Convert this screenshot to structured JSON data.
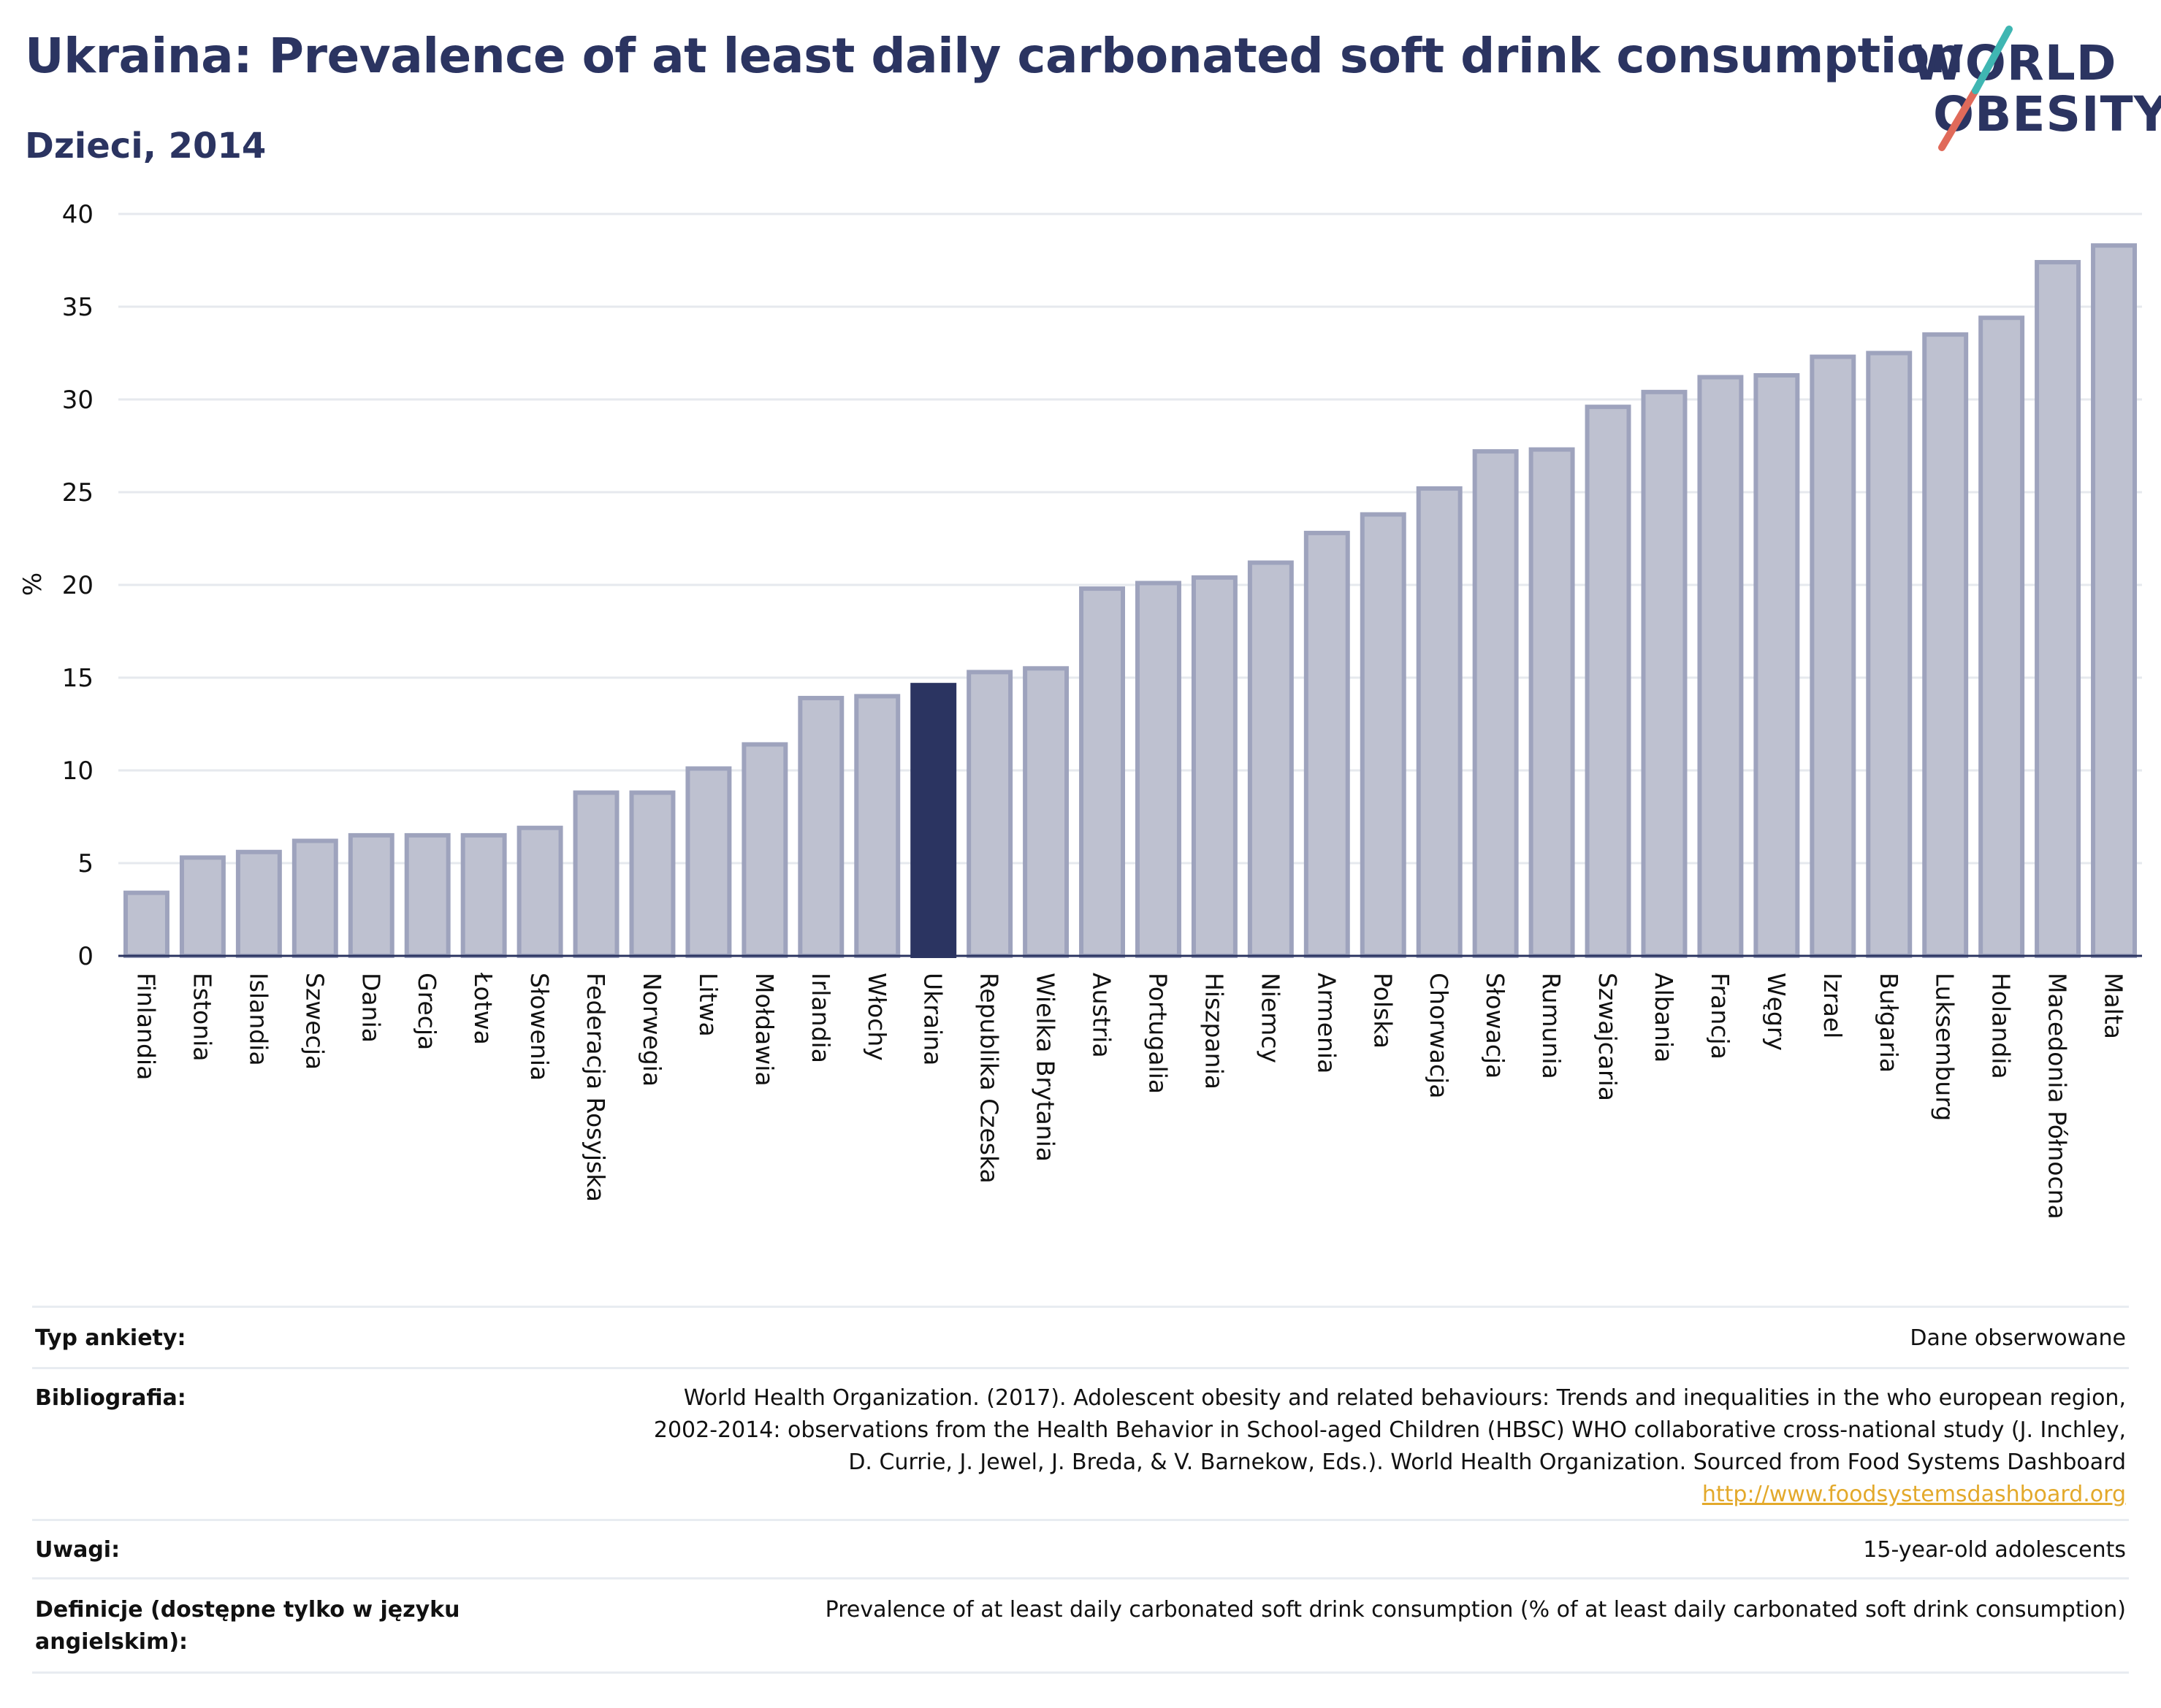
{
  "header": {
    "title": "Ukraina: Prevalence of at least daily carbonated soft drink consumption",
    "subtitle": "Dzieci, 2014"
  },
  "logo": {
    "line1": "WORLD",
    "line2": "OBESITY"
  },
  "colors": {
    "bar": "#bec1d0",
    "bar_border": "#9ea3bd",
    "highlight": "#2b3461",
    "grid": "#e6e9ee",
    "text": "#2b3461"
  },
  "chart_data": {
    "type": "bar",
    "title": "Ukraina: Prevalence of at least daily carbonated soft drink consumption",
    "subtitle": "Dzieci, 2014",
    "xlabel": "",
    "ylabel": "%",
    "ylim": [
      0,
      40
    ],
    "yticks": [
      0,
      5,
      10,
      15,
      20,
      25,
      30,
      35,
      40
    ],
    "grid": true,
    "highlight": "Ukraina",
    "categories": [
      "Finlandia",
      "Estonia",
      "Islandia",
      "Szwecja",
      "Dania",
      "Grecja",
      "Łotwa",
      "Słowenia",
      "Federacja Rosyjska",
      "Norwegia",
      "Litwa",
      "Mołdawia",
      "Irlandia",
      "Włochy",
      "Ukraina",
      "Republika Czeska",
      "Wielka Brytania",
      "Austria",
      "Portugalia",
      "Hiszpania",
      "Niemcy",
      "Armenia",
      "Polska",
      "Chorwacja",
      "Słowacja",
      "Rumunia",
      "Szwajcaria",
      "Albania",
      "Francja",
      "Węgry",
      "Izrael",
      "Bułgaria",
      "Luksemburg",
      "Holandia",
      "Macedonia Północna",
      "Malta"
    ],
    "values": [
      3.4,
      5.3,
      5.6,
      6.2,
      6.5,
      6.5,
      6.5,
      6.9,
      8.8,
      8.8,
      10.1,
      11.4,
      13.9,
      14.0,
      14.6,
      15.3,
      15.5,
      19.8,
      20.1,
      20.4,
      21.2,
      22.8,
      23.8,
      25.2,
      27.2,
      27.3,
      29.6,
      30.4,
      31.2,
      31.3,
      32.3,
      32.5,
      33.5,
      34.4,
      37.4,
      38.3
    ]
  },
  "meta": {
    "survey_type_label": "Typ ankiety:",
    "survey_type_value": "Dane obserwowane",
    "bibliography_label": "Bibliografia:",
    "bibliography_lines": [
      "World Health Organization. (2017). Adolescent obesity and related behaviours: Trends and inequalities in the who european region,",
      "2002-2014: observations from the Health Behavior in School-aged Children (HBSC) WHO collaborative cross-national study (J. Inchley,",
      "D. Currie, J. Jewel, J. Breda, & V. Barnekow, Eds.). World Health Organization. Sourced from Food Systems Dashboard"
    ],
    "bibliography_link": "http://www.foodsystemsdashboard.org",
    "notes_label": "Uwagi:",
    "notes_value": "15-year-old adolescents",
    "definitions_label": "Definicje (dostępne tylko w języku angielskim):",
    "definitions_value": "Prevalence of at least daily carbonated soft drink consumption (% of at least daily carbonated soft drink consumption)"
  }
}
